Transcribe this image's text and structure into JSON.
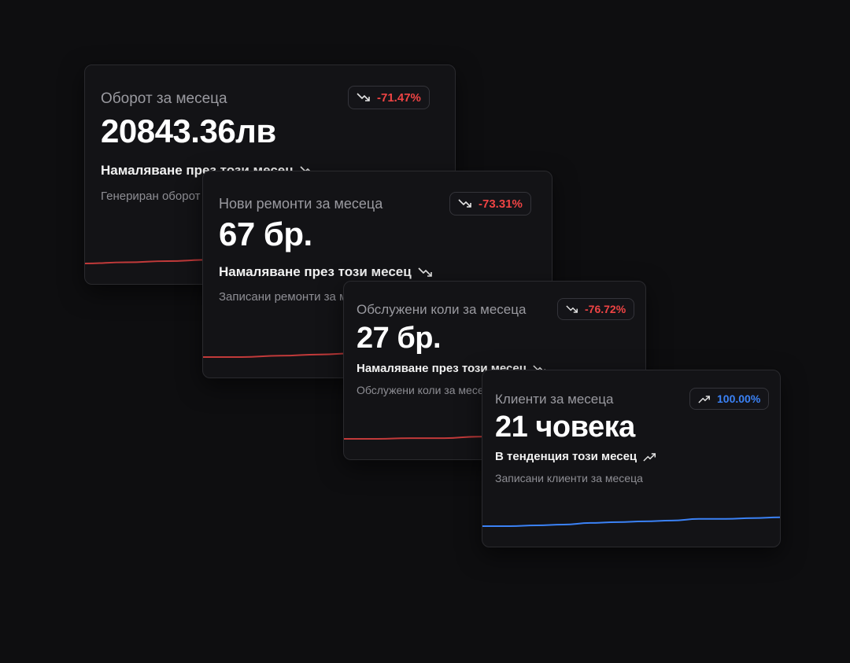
{
  "colors": {
    "negative": "#ef4444",
    "positive": "#3b82f6",
    "spark_negative": "#c23a3a",
    "spark_positive": "#3b82f6"
  },
  "cards": [
    {
      "title": "Оборот за месеца",
      "value": "20843.36лв",
      "change": "-71.47%",
      "change_icon": "trending-down-icon",
      "trend_text": "Намаляване през този месец",
      "trend_icon": "trending-down-icon",
      "description": "Генериран оборот за месеца",
      "spark_values": [
        10,
        11,
        12,
        13,
        14,
        16,
        17,
        18,
        20,
        22
      ]
    },
    {
      "title": "Нови ремонти за месеца",
      "value": "67 бр.",
      "change": "-73.31%",
      "change_icon": "trending-down-icon",
      "trend_text": "Намаляване през този месец",
      "trend_icon": "trending-down-icon",
      "description": "Записани ремонти за месеца",
      "spark_values": [
        10,
        10,
        11,
        12,
        13,
        14,
        16,
        18,
        19,
        21
      ]
    },
    {
      "title": "Обслужени коли за месеца",
      "value": "27 бр.",
      "change": "-76.72%",
      "change_icon": "trending-down-icon",
      "trend_text": "Намаляване през този месец",
      "trend_icon": "trending-down-icon",
      "description": "Обслужени коли за месеца",
      "spark_values": [
        10,
        10,
        11,
        11,
        13,
        14,
        17,
        19,
        21,
        22
      ]
    },
    {
      "title": "Клиенти за месеца",
      "value": "21 човека",
      "change": "100.00%",
      "change_icon": "trending-up-icon",
      "trend_text": "В тенденция този месец",
      "trend_icon": "trending-up-icon",
      "description": "Записани клиенти за месеца",
      "spark_values": [
        10,
        10,
        11,
        12,
        14,
        15,
        16,
        17,
        19,
        19,
        20,
        21
      ]
    }
  ]
}
